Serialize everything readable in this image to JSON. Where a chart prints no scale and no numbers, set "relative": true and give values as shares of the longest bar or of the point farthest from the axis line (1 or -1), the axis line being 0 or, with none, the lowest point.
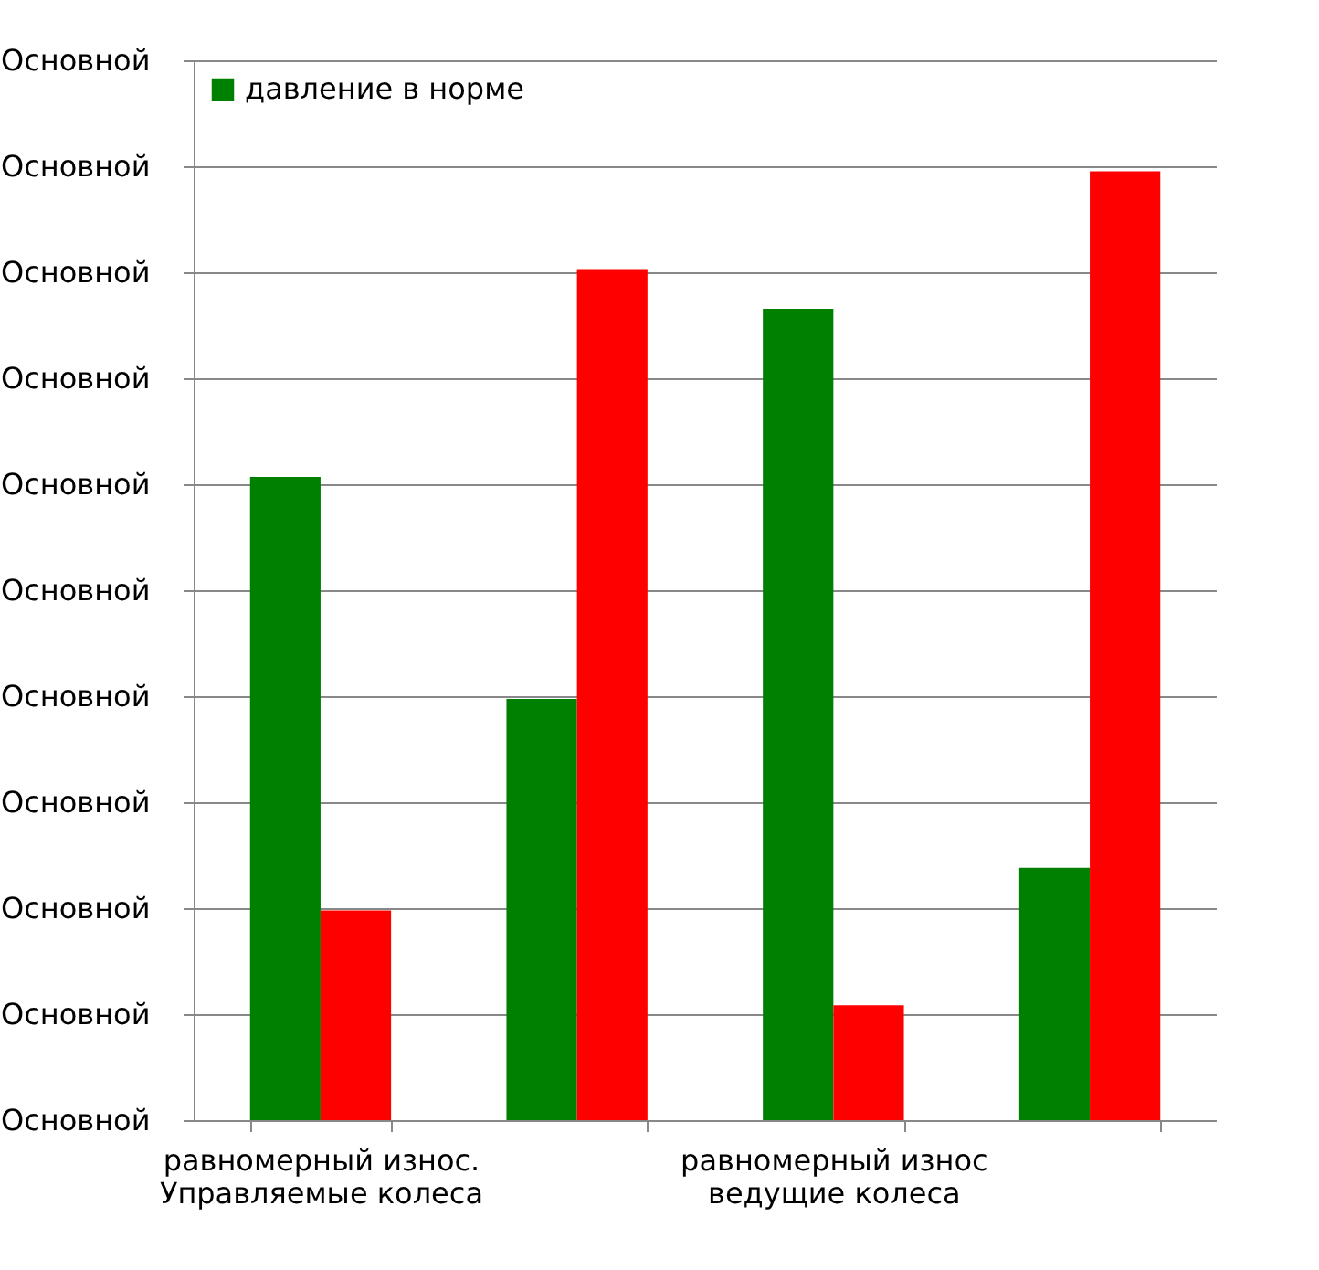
{
  "chart_data": {
    "type": "bar",
    "categories": [
      "равномерный износ. Управляемые колеса",
      null,
      "равномерный износ ведущие колеса",
      null
    ],
    "series": [
      {
        "name": "давление в норме",
        "color": "#008000",
        "values": [
          0.678,
          0.444,
          0.855,
          0.266
        ]
      },
      {
        "color": "#ff0000",
        "values": [
          0.221,
          0.897,
          0.121,
          1.0
        ]
      }
    ],
    "relative": true,
    "annotations": [
      "Основной",
      "Основной",
      "Основной",
      "Основной",
      "Основной",
      "Основной",
      "Основной",
      "Основной",
      "Основной",
      "Основной",
      "Основной"
    ],
    "grid": "y",
    "legend": "top left"
  }
}
